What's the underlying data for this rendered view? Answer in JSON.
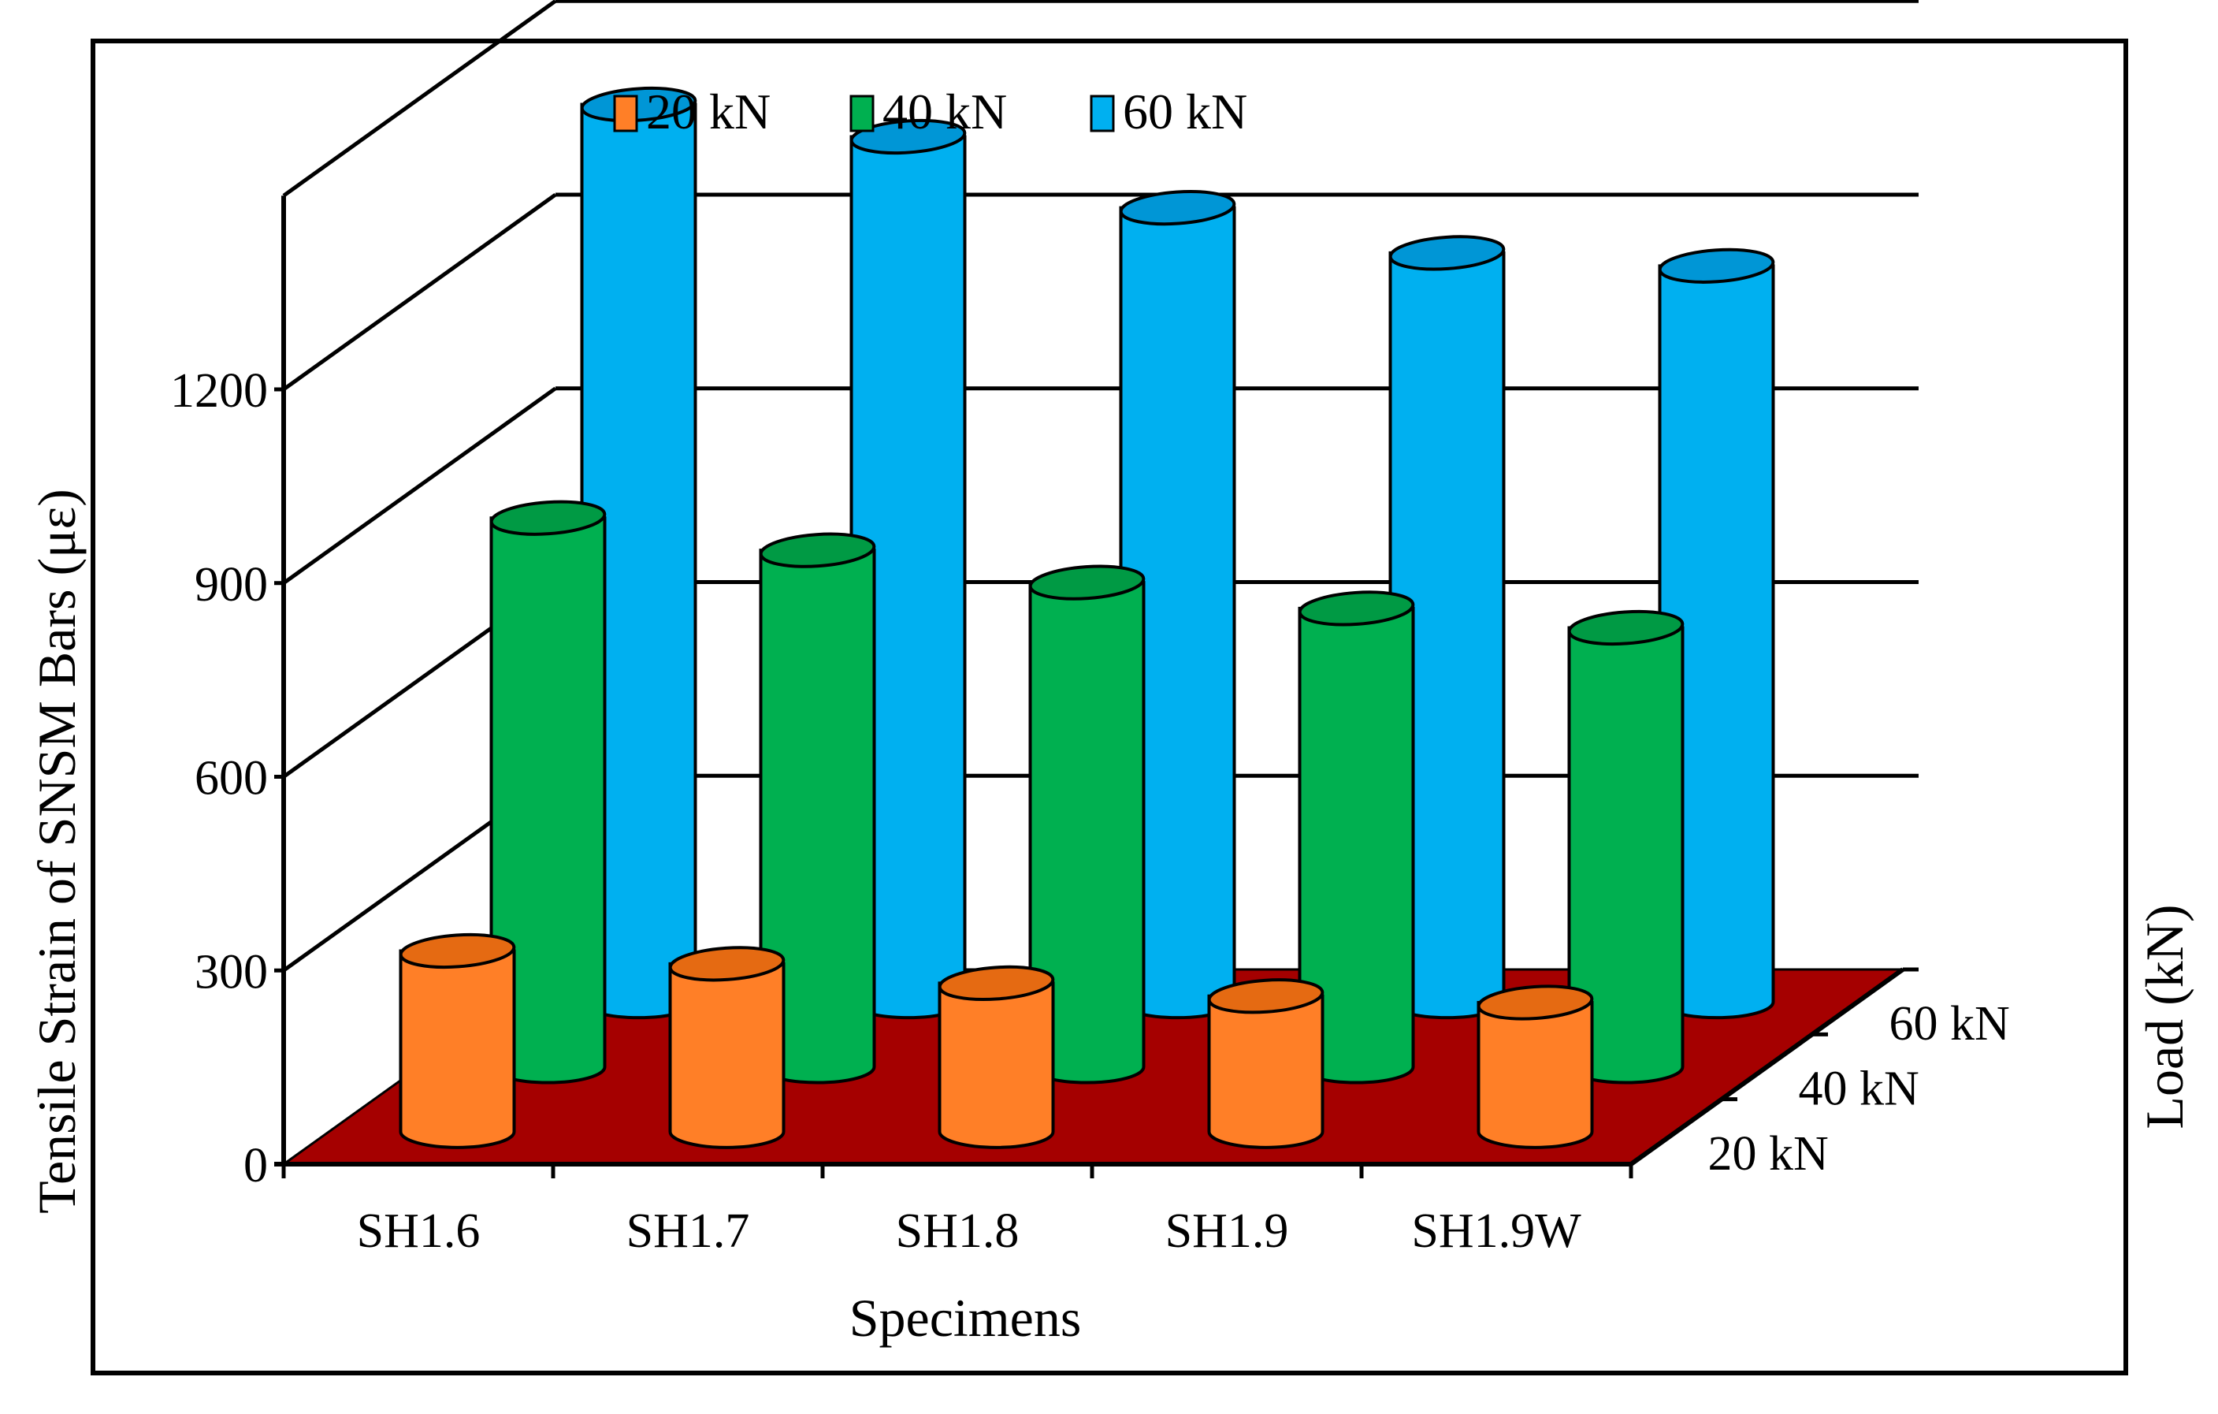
{
  "chart_data": {
    "type": "bar",
    "subtype": "3d-cylinder",
    "title": "",
    "xlabel": "Specimens",
    "ylabel": "Tensile Strain of SNSM Bars (με)",
    "zlabel": "Load (kN)",
    "categories": [
      "SH1.6",
      "SH1.7",
      "SH1.8",
      "SH1.9",
      "SH1.9W"
    ],
    "y_ticks": [
      "0",
      "300",
      "600",
      "900",
      "1200"
    ],
    "ylim": [
      0,
      1500
    ],
    "grid": true,
    "legend_position": "top",
    "series": [
      {
        "name": "20 kN",
        "color": "#FF7F27",
        "top_color": "#E56A12",
        "values": [
          280,
          260,
          230,
          210,
          200
        ]
      },
      {
        "name": "40 kN",
        "color": "#00B050",
        "top_color": "#009A44",
        "values": [
          850,
          800,
          750,
          710,
          680
        ]
      },
      {
        "name": "60 kN",
        "color": "#00B0F0",
        "top_color": "#0096D6",
        "values": [
          1390,
          1340,
          1230,
          1160,
          1140
        ]
      }
    ],
    "depth_labels": [
      "20 kN",
      "40 kN",
      "60 kN"
    ],
    "floor_color": "#A50000"
  }
}
